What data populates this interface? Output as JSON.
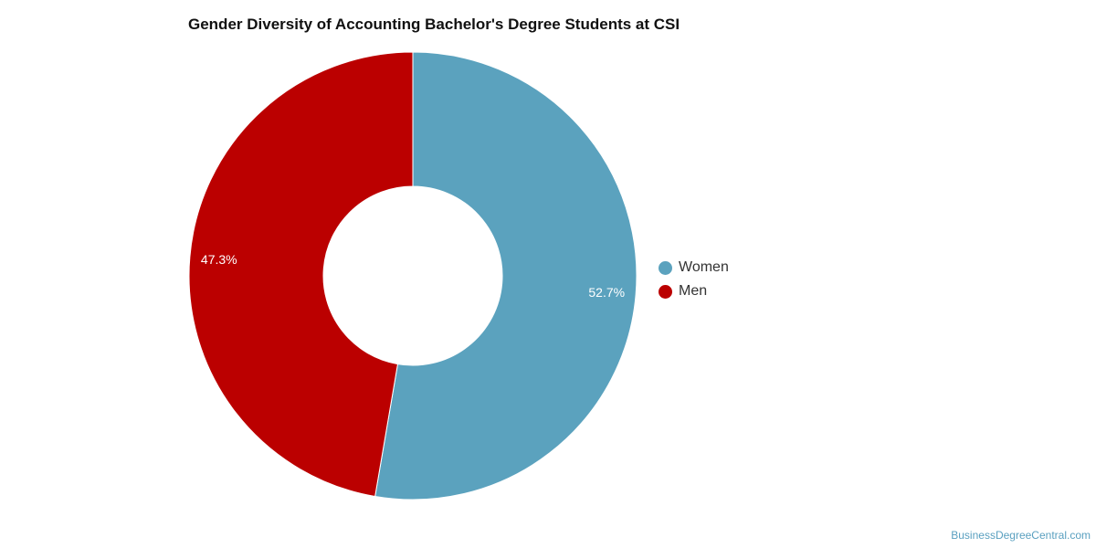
{
  "chart_data": {
    "type": "pie",
    "title": "Gender Diversity of Accounting Bachelor's Degree Students at CSI",
    "categories": [
      "Women",
      "Men"
    ],
    "values": [
      52.7,
      47.3
    ],
    "data_labels": [
      "52.7%",
      "47.3%"
    ],
    "colors": [
      "#5ba2be",
      "#bb0000"
    ],
    "donut": true,
    "legend_position": "right"
  },
  "watermark": "BusinessDegreeCentral.com"
}
